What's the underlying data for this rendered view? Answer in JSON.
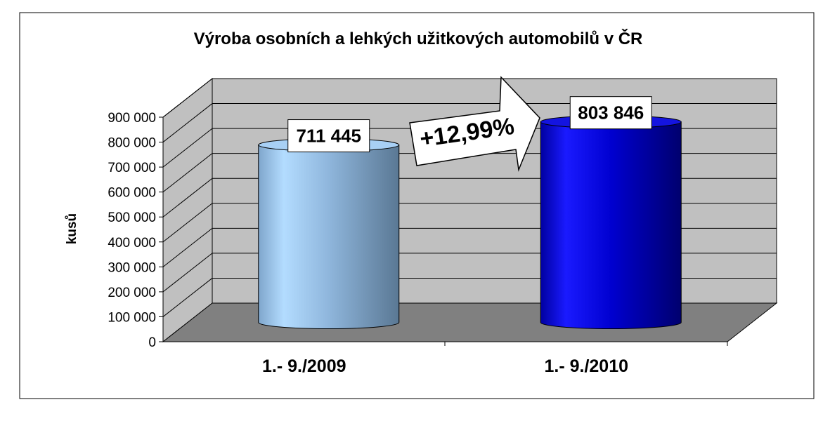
{
  "chart_data": {
    "type": "bar",
    "title": "Výroba osobních a lehkých užitkových automobilů v ČR",
    "ylabel": "kusů",
    "xlabel": "",
    "categories": [
      "1.- 9./2009",
      "1.- 9./2010"
    ],
    "values": [
      711445,
      803846
    ],
    "data_labels": [
      "711 445",
      "803 846"
    ],
    "ylim": [
      0,
      900000
    ],
    "yticks": [
      0,
      100000,
      200000,
      300000,
      400000,
      500000,
      600000,
      700000,
      800000,
      900000
    ],
    "ytick_labels": [
      "0",
      "100 000",
      "200 000",
      "300 000",
      "400 000",
      "500 000",
      "600 000",
      "700 000",
      "800 000",
      "900 000"
    ],
    "grid": true,
    "legend": "none",
    "annotation": "+12,99%",
    "colors": {
      "bar_2009": "#99ccff",
      "bar_2010": "#0000cc",
      "wall": "#c0c0c0",
      "floor": "#808080"
    }
  }
}
